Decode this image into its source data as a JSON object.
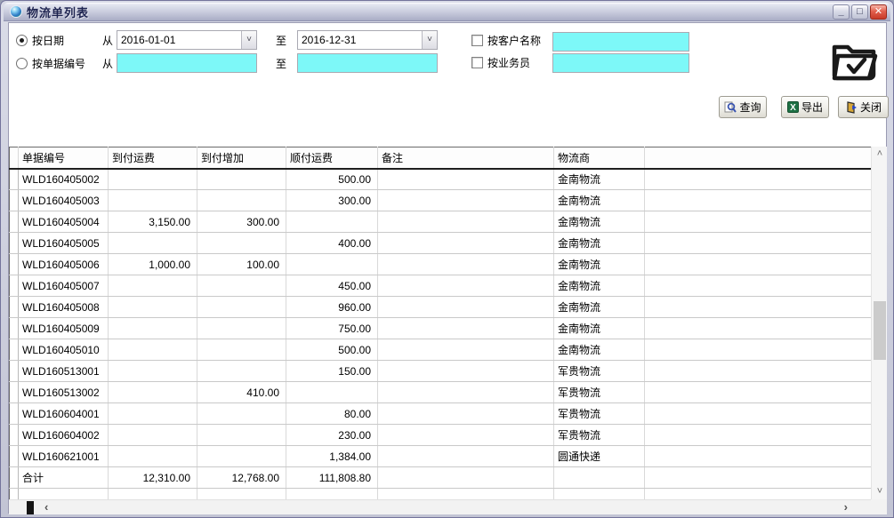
{
  "window": {
    "title": "物流单列表",
    "controls": {
      "minimize": "_",
      "maximize": "□",
      "close": "✕"
    }
  },
  "filters": {
    "radio_by_date_label": "按日期",
    "radio_by_doc_label": "按单据编号",
    "from_label": "从",
    "to_label": "至",
    "date_from": "2016-01-01",
    "date_to": "2016-12-31",
    "doc_from_value": "",
    "doc_to_value": "",
    "chk_customer_label": "按客户名称",
    "chk_salesman_label": "按业务员",
    "customer_value": "",
    "salesman_value": ""
  },
  "toolbar": {
    "query_label": "查询",
    "export_label": "导出",
    "close_label": "关闭",
    "excel_icon_letter": "X"
  },
  "icons": {
    "combo_arrow": "˅",
    "scroll_up": "˄",
    "scroll_down": "˅",
    "scroll_left": "‹",
    "scroll_right": "›"
  },
  "colors": {
    "input_cyan": "#7DF8F8",
    "close_button_red": "#D9503E",
    "excel_green": "#1E7145",
    "titlebar_silver": "#C7CADC"
  },
  "table": {
    "columns": [
      "单据编号",
      "到付运费",
      "到付增加",
      "顺付运费",
      "备注",
      "物流商"
    ],
    "rows": [
      [
        "WLD160405002",
        "",
        "",
        "500.00",
        "",
        "金南物流"
      ],
      [
        "WLD160405003",
        "",
        "",
        "300.00",
        "",
        "金南物流"
      ],
      [
        "WLD160405004",
        "3,150.00",
        "300.00",
        "",
        "",
        "金南物流"
      ],
      [
        "WLD160405005",
        "",
        "",
        "400.00",
        "",
        "金南物流"
      ],
      [
        "WLD160405006",
        "1,000.00",
        "100.00",
        "",
        "",
        "金南物流"
      ],
      [
        "WLD160405007",
        "",
        "",
        "450.00",
        "",
        "金南物流"
      ],
      [
        "WLD160405008",
        "",
        "",
        "960.00",
        "",
        "金南物流"
      ],
      [
        "WLD160405009",
        "",
        "",
        "750.00",
        "",
        "金南物流"
      ],
      [
        "WLD160405010",
        "",
        "",
        "500.00",
        "",
        "金南物流"
      ],
      [
        "WLD160513001",
        "",
        "",
        "150.00",
        "",
        "军贵物流"
      ],
      [
        "WLD160513002",
        "",
        "410.00",
        "",
        "",
        "军贵物流"
      ],
      [
        "WLD160604001",
        "",
        "",
        "80.00",
        "",
        "军贵物流"
      ],
      [
        "WLD160604002",
        "",
        "",
        "230.00",
        "",
        "军贵物流"
      ],
      [
        "WLD160621001",
        "",
        "",
        "1,384.00",
        "",
        "圆通快递"
      ],
      [
        "合计",
        "12,310.00",
        "12,768.00",
        "111,808.80",
        "",
        ""
      ]
    ]
  }
}
